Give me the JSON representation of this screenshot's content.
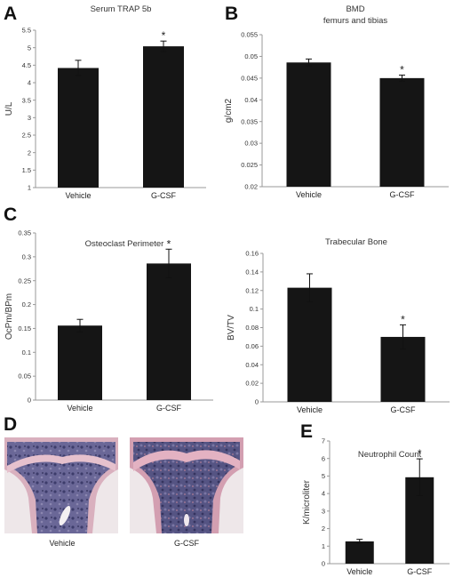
{
  "panel_letters": [
    "A",
    "B",
    "C",
    "D",
    "E"
  ],
  "chart_data": [
    {
      "id": "A",
      "type": "bar",
      "title": "Serum TRAP 5b",
      "title2": "",
      "ylabel": "U/L",
      "xlabel": "",
      "categories": [
        "Vehicle",
        "G-CSF"
      ],
      "values": [
        4.42,
        5.04
      ],
      "errors": [
        0.22,
        0.15
      ],
      "significant": [
        false,
        true
      ],
      "ylim": [
        1,
        5.5
      ],
      "yticks": [
        1,
        1.5,
        2,
        2.5,
        3,
        3.5,
        4,
        4.5,
        5,
        5.5
      ],
      "ytick_labels": [
        "1",
        "1.5",
        "2",
        "2.5",
        "3",
        "3.5",
        "4",
        "4.5",
        "5",
        "5.5"
      ]
    },
    {
      "id": "B",
      "type": "bar",
      "title": "BMD",
      "title2": "femurs and tibias",
      "ylabel": "g/cm2",
      "xlabel": "",
      "categories": [
        "Vehicle",
        "G-CSF"
      ],
      "values": [
        0.0486,
        0.045
      ],
      "errors": [
        0.0008,
        0.0007
      ],
      "significant": [
        false,
        true
      ],
      "ylim": [
        0.02,
        0.055
      ],
      "yticks": [
        0.02,
        0.025,
        0.03,
        0.035,
        0.04,
        0.045,
        0.05,
        0.055
      ],
      "ytick_labels": [
        "0.02",
        "0.025",
        "0.03",
        "0.035",
        "0.04",
        "0.045",
        "0.05",
        "0.055"
      ]
    },
    {
      "id": "C1",
      "type": "bar",
      "title": "Osteoclast Perimeter",
      "title2": "",
      "ylabel": "OcPm/BPm",
      "xlabel": "",
      "categories": [
        "Vehicle",
        "G-CSF"
      ],
      "values": [
        0.156,
        0.286
      ],
      "errors": [
        0.013,
        0.03
      ],
      "significant": [
        false,
        true
      ],
      "ylim": [
        0,
        0.35
      ],
      "yticks": [
        0,
        0.05,
        0.1,
        0.15,
        0.2,
        0.25,
        0.3,
        0.35
      ],
      "ytick_labels": [
        "0",
        "0.05",
        "0.1",
        "0.15",
        "0.2",
        "0.25",
        "0.3",
        "0.35"
      ]
    },
    {
      "id": "C2",
      "type": "bar",
      "title": "Trabecular Bone",
      "title2": "",
      "ylabel": "BV/TV",
      "xlabel": "",
      "categories": [
        "Vehicle",
        "G-CSF"
      ],
      "values": [
        0.123,
        0.07
      ],
      "errors": [
        0.015,
        0.013
      ],
      "significant": [
        false,
        true
      ],
      "ylim": [
        0,
        0.16
      ],
      "yticks": [
        0,
        0.02,
        0.04,
        0.06,
        0.08,
        0.1,
        0.12,
        0.14,
        0.16
      ],
      "ytick_labels": [
        "0",
        "0.02",
        "0.04",
        "0.06",
        "0.08",
        "0.1",
        "0.12",
        "0.14",
        "0.16"
      ]
    },
    {
      "id": "E",
      "type": "bar",
      "title": "Neutrophil Count",
      "title2": "",
      "ylabel": "K/microliter",
      "xlabel": "",
      "categories": [
        "Vehicle",
        "G-CSF"
      ],
      "values": [
        1.27,
        4.93
      ],
      "errors": [
        0.12,
        1.05
      ],
      "significant": [
        false,
        true
      ],
      "ylim": [
        0,
        7
      ],
      "yticks": [
        0,
        1,
        2,
        3,
        4,
        5,
        6,
        7
      ],
      "ytick_labels": [
        "0",
        "1",
        "2",
        "3",
        "4",
        "5",
        "6",
        "7"
      ]
    }
  ],
  "significance_marker": "*",
  "histology": {
    "captions": [
      "Vehicle",
      "G-CSF"
    ]
  },
  "colors": {
    "bar": "#151515",
    "axis": "#999999",
    "tissue_pink": "#d8aab8",
    "tissue_purple": "#5b5a8c"
  }
}
